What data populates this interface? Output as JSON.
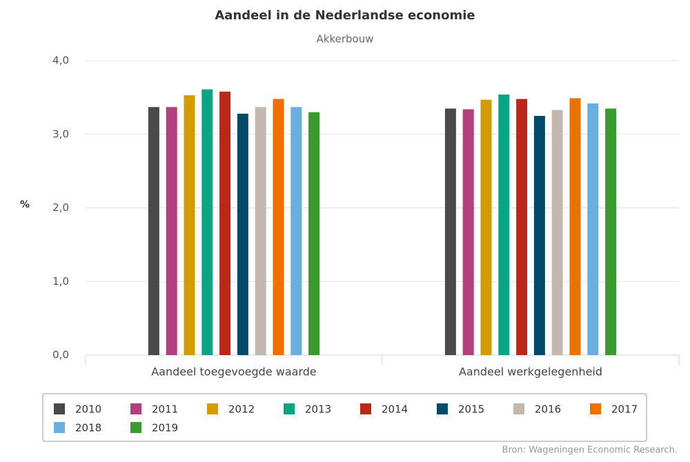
{
  "chart_data": {
    "type": "bar",
    "title": "Aandeel in de Nederlandse economie",
    "subtitle": "Akkerbouw",
    "y_label": "%",
    "source": "Bron: Wageningen Economic Research.",
    "categories": [
      "Aandeel toegevoegde waarde",
      "Aandeel werkgelegenheid"
    ],
    "series": [
      {
        "name": "2010",
        "color": "#4a4a4a",
        "values": [
          3.37,
          3.35
        ]
      },
      {
        "name": "2011",
        "color": "#b33f7e",
        "values": [
          3.37,
          3.34
        ]
      },
      {
        "name": "2012",
        "color": "#d29b00",
        "values": [
          3.53,
          3.47
        ]
      },
      {
        "name": "2013",
        "color": "#0aa582",
        "values": [
          3.61,
          3.54
        ]
      },
      {
        "name": "2014",
        "color": "#b8291c",
        "values": [
          3.58,
          3.48
        ]
      },
      {
        "name": "2015",
        "color": "#004a6b",
        "values": [
          3.28,
          3.25
        ]
      },
      {
        "name": "2016",
        "color": "#c2b8ad",
        "values": [
          3.37,
          3.33
        ]
      },
      {
        "name": "2017",
        "color": "#ee7100",
        "values": [
          3.48,
          3.49
        ]
      },
      {
        "name": "2018",
        "color": "#6aafe0",
        "values": [
          3.37,
          3.42
        ]
      },
      {
        "name": "2019",
        "color": "#3a9a2e",
        "values": [
          3.3,
          3.35
        ]
      }
    ],
    "ylim": [
      0,
      4
    ],
    "yticks": [
      {
        "value": 0,
        "label": "0,0"
      },
      {
        "value": 1,
        "label": "1,0"
      },
      {
        "value": 2,
        "label": "2,0"
      },
      {
        "value": 3,
        "label": "3,0"
      },
      {
        "value": 4,
        "label": "4,0"
      }
    ],
    "grid": true
  }
}
